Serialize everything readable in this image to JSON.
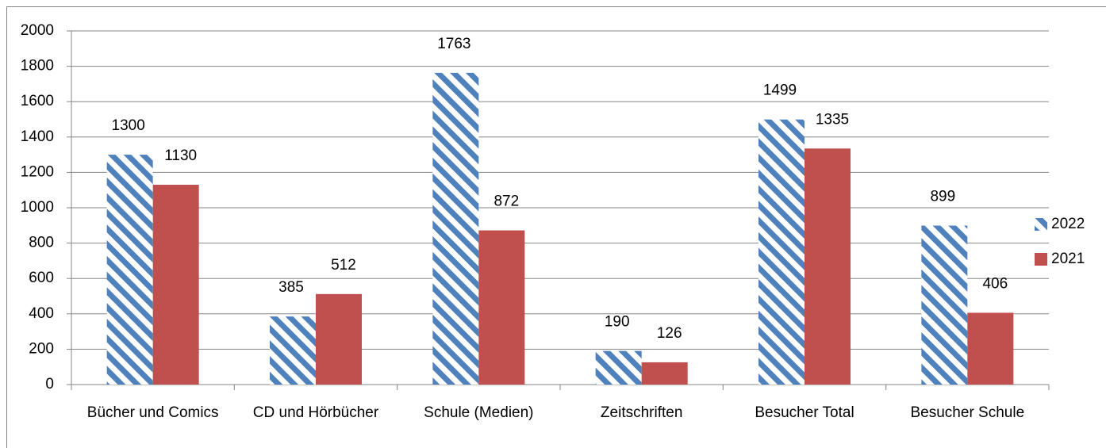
{
  "chart_data": {
    "type": "bar",
    "categories": [
      "Bücher und Comics",
      "CD und Hörbücher",
      "Schule (Medien)",
      "Zeitschriften",
      "Besucher Total",
      "Besucher Schule"
    ],
    "series": [
      {
        "name": "2022",
        "color": "#4f81bd",
        "pattern": "hatch",
        "values": [
          1300,
          385,
          1763,
          190,
          1499,
          899
        ]
      },
      {
        "name": "2021",
        "color": "#c0504d",
        "values": [
          1130,
          512,
          872,
          126,
          1335,
          406
        ]
      }
    ],
    "ylim": [
      0,
      2000
    ],
    "yticks": [
      0,
      200,
      400,
      600,
      800,
      1000,
      1200,
      1400,
      1600,
      1800,
      2000
    ],
    "grid": true,
    "legend": "right"
  }
}
